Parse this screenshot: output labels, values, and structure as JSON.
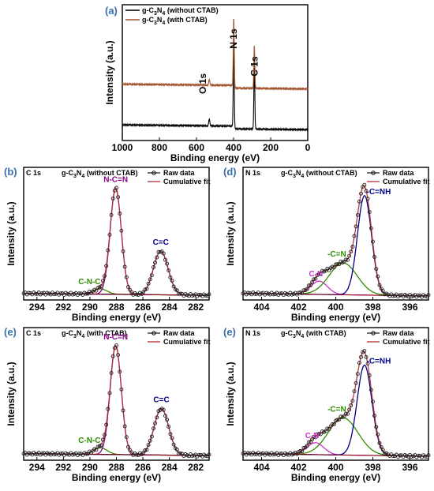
{
  "chart_data": [
    {
      "id": "a",
      "panel_label": "(a)",
      "type": "line",
      "xlabel": "Binding energy (eV)",
      "ylabel": "Intensity (a.u.)",
      "xlim": [
        1000,
        0
      ],
      "xticks": [
        1000,
        800,
        600,
        400,
        200,
        0
      ],
      "ylim": [
        0,
        1
      ],
      "legend_position": "top-left",
      "series": [
        {
          "name": "g-C3N4 (without CTAB)",
          "name_parts": [
            "g-C",
            "3",
            "N",
            "4",
            " (without CTAB)"
          ],
          "color": "#000000",
          "offset": 0.1,
          "peaks": [
            {
              "x": 531,
              "h": 0.05,
              "w": 3
            },
            {
              "x": 399,
              "h": 0.66,
              "w": 2.5
            },
            {
              "x": 288,
              "h": 0.5,
              "w": 2.5
            }
          ]
        },
        {
          "name": "g-C3N4 (with CTAB)",
          "name_parts": [
            "g-C",
            "3",
            "N",
            "4",
            " (with CTAB)"
          ],
          "color": "#a0522d",
          "offset": 0.4,
          "peaks": [
            {
              "x": 531,
              "h": 0.04,
              "w": 3
            },
            {
              "x": 399,
              "h": 0.52,
              "w": 2.5
            },
            {
              "x": 288,
              "h": 0.32,
              "w": 2.5
            }
          ]
        }
      ],
      "annotations": [
        {
          "text": "O 1s",
          "x": 531
        },
        {
          "text": "N 1s",
          "x": 399
        },
        {
          "text": "C 1s",
          "x": 288
        }
      ]
    },
    {
      "id": "b",
      "panel_label": "(b)",
      "type": "line",
      "region": "C 1s",
      "sample": [
        "g-C",
        "3",
        "N",
        "4",
        " (without CTAB)"
      ],
      "xlabel": "Binding energy (eV)",
      "ylabel": "Intensity (a.u.)",
      "xlim": [
        295,
        281
      ],
      "xticks": [
        294,
        292,
        290,
        288,
        286,
        284,
        282
      ],
      "ylim": [
        0,
        1
      ],
      "legend": [
        "Raw data",
        "Cumulative fit"
      ],
      "baseline": [
        0.05,
        0.035
      ],
      "components": [
        {
          "label": "C-N-C",
          "center": 289.2,
          "height": 0.04,
          "width": 0.5,
          "color": "#2e8b00"
        },
        {
          "label": "N-C=N",
          "center": 288.05,
          "height": 0.8,
          "width": 0.42,
          "color": "#8b008b"
        },
        {
          "label": "C=C",
          "center": 284.65,
          "height": 0.33,
          "width": 0.55,
          "color": "#00008b"
        }
      ]
    },
    {
      "id": "d",
      "panel_label": "(d)",
      "type": "line",
      "region": "N 1s",
      "sample": [
        "g-C",
        "3",
        "N",
        "4",
        " (without CTAB)"
      ],
      "xlabel": "Binding energy (eV)",
      "ylabel": "Intensity (a.u.)",
      "xlim": [
        405,
        395
      ],
      "xticks": [
        404,
        402,
        400,
        398,
        396
      ],
      "ylim": [
        0,
        1
      ],
      "legend": [
        "Raw data",
        "Cumulative fit"
      ],
      "baseline": [
        0.05,
        0.03
      ],
      "components": [
        {
          "label": "C-N",
          "center": 400.9,
          "height": 0.1,
          "width": 0.45,
          "color": "#cc33cc"
        },
        {
          "label": "-C=N",
          "center": 399.6,
          "height": 0.24,
          "width": 0.75,
          "color": "#2e8b00"
        },
        {
          "label": "-C=NH",
          "center": 398.45,
          "height": 0.75,
          "width": 0.38,
          "color": "#00008b"
        }
      ]
    },
    {
      "id": "e1",
      "panel_label": "(e)",
      "type": "line",
      "region": "C 1s",
      "sample": [
        "g-C",
        "3",
        "N",
        "4",
        " (with CTAB)"
      ],
      "xlabel": "Binding energy (eV)",
      "ylabel": "Intensity (a.u.)",
      "xlim": [
        295,
        281
      ],
      "xticks": [
        294,
        292,
        290,
        288,
        286,
        284,
        282
      ],
      "ylim": [
        0,
        1
      ],
      "legend": [
        "Raw data",
        "Cumulative fit"
      ],
      "baseline": [
        0.05,
        0.035
      ],
      "components": [
        {
          "label": "C-N-C",
          "center": 289.2,
          "height": 0.05,
          "width": 0.5,
          "color": "#2e8b00"
        },
        {
          "label": "N-C=N",
          "center": 288.05,
          "height": 0.82,
          "width": 0.42,
          "color": "#8b008b"
        },
        {
          "label": "C=C",
          "center": 284.6,
          "height": 0.35,
          "width": 0.55,
          "color": "#00008b"
        }
      ]
    },
    {
      "id": "e2",
      "panel_label": "(e)",
      "type": "line",
      "region": "N 1s",
      "sample": [
        "g-C",
        "3",
        "N",
        "4",
        " (with CTAB)"
      ],
      "xlabel": "Binding energy (eV)",
      "ylabel": "Intensity (a.u.)",
      "xlim": [
        405,
        395
      ],
      "xticks": [
        404,
        402,
        400,
        398,
        396
      ],
      "ylim": [
        0,
        1
      ],
      "legend": [
        "Raw data",
        "Cumulative fit"
      ],
      "baseline": [
        0.05,
        0.03
      ],
      "components": [
        {
          "label": "C-N",
          "center": 401.1,
          "height": 0.09,
          "width": 0.45,
          "color": "#cc33cc"
        },
        {
          "label": "-C=N",
          "center": 399.6,
          "height": 0.28,
          "width": 0.8,
          "color": "#2e8b00"
        },
        {
          "label": "-C=NH",
          "center": 398.45,
          "height": 0.68,
          "width": 0.4,
          "color": "#00008b"
        }
      ]
    }
  ]
}
